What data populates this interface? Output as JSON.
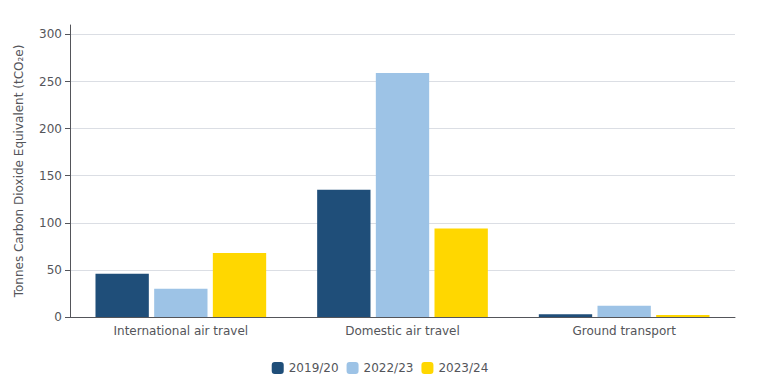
{
  "chart_data": {
    "type": "bar",
    "ylabel": "Tonnes Carbon Dioxide Equivalent (tCO₂e)",
    "categories": [
      "International air travel",
      "Domestic air travel",
      "Ground transport"
    ],
    "series": [
      {
        "name": "2019/20",
        "color": "#1F4E79",
        "values": [
          46,
          135,
          3
        ]
      },
      {
        "name": "2022/23",
        "color": "#9DC3E6",
        "values": [
          30,
          259,
          12
        ]
      },
      {
        "name": "2023/24",
        "color": "#FFD700",
        "values": [
          68,
          94,
          2
        ]
      }
    ],
    "ylim": [
      0,
      310
    ],
    "yticks": [
      0,
      50,
      100,
      150,
      200,
      250,
      300
    ],
    "grid": true,
    "legend": "bottom"
  }
}
